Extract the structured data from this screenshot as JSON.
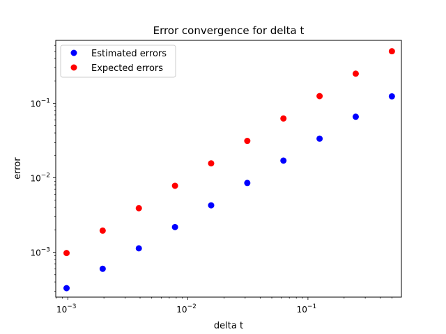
{
  "chart_data": {
    "type": "scatter",
    "title": "Error convergence for delta t",
    "xlabel": "delta t",
    "ylabel": "error",
    "xscale": "log",
    "yscale": "log",
    "xlim": [
      0.000794,
      0.6
    ],
    "ylim": [
      0.00025,
      0.7
    ],
    "grid": false,
    "legend_position": "top-left",
    "x_ticks": [
      {
        "value": 0.001,
        "base": "10",
        "exp": "−3"
      },
      {
        "value": 0.01,
        "base": "10",
        "exp": "−2"
      },
      {
        "value": 0.1,
        "base": "10",
        "exp": "−1"
      }
    ],
    "y_ticks": [
      {
        "value": 0.001,
        "base": "10",
        "exp": "−3"
      },
      {
        "value": 0.01,
        "base": "10",
        "exp": "−2"
      },
      {
        "value": 0.1,
        "base": "10",
        "exp": "−1"
      }
    ],
    "x": [
      0.000977,
      0.001953,
      0.003906,
      0.007813,
      0.015625,
      0.03125,
      0.0625,
      0.125,
      0.25,
      0.5
    ],
    "series": [
      {
        "name": "Estimated errors",
        "color": "#0000ff",
        "values": [
          0.00033,
          0.0006,
          0.00113,
          0.00218,
          0.00427,
          0.00853,
          0.017,
          0.0335,
          0.066,
          0.124
        ]
      },
      {
        "name": "Expected errors",
        "color": "#ff0000",
        "values": [
          0.000977,
          0.001953,
          0.003906,
          0.007813,
          0.015625,
          0.03125,
          0.0625,
          0.125,
          0.25,
          0.5
        ]
      }
    ]
  }
}
